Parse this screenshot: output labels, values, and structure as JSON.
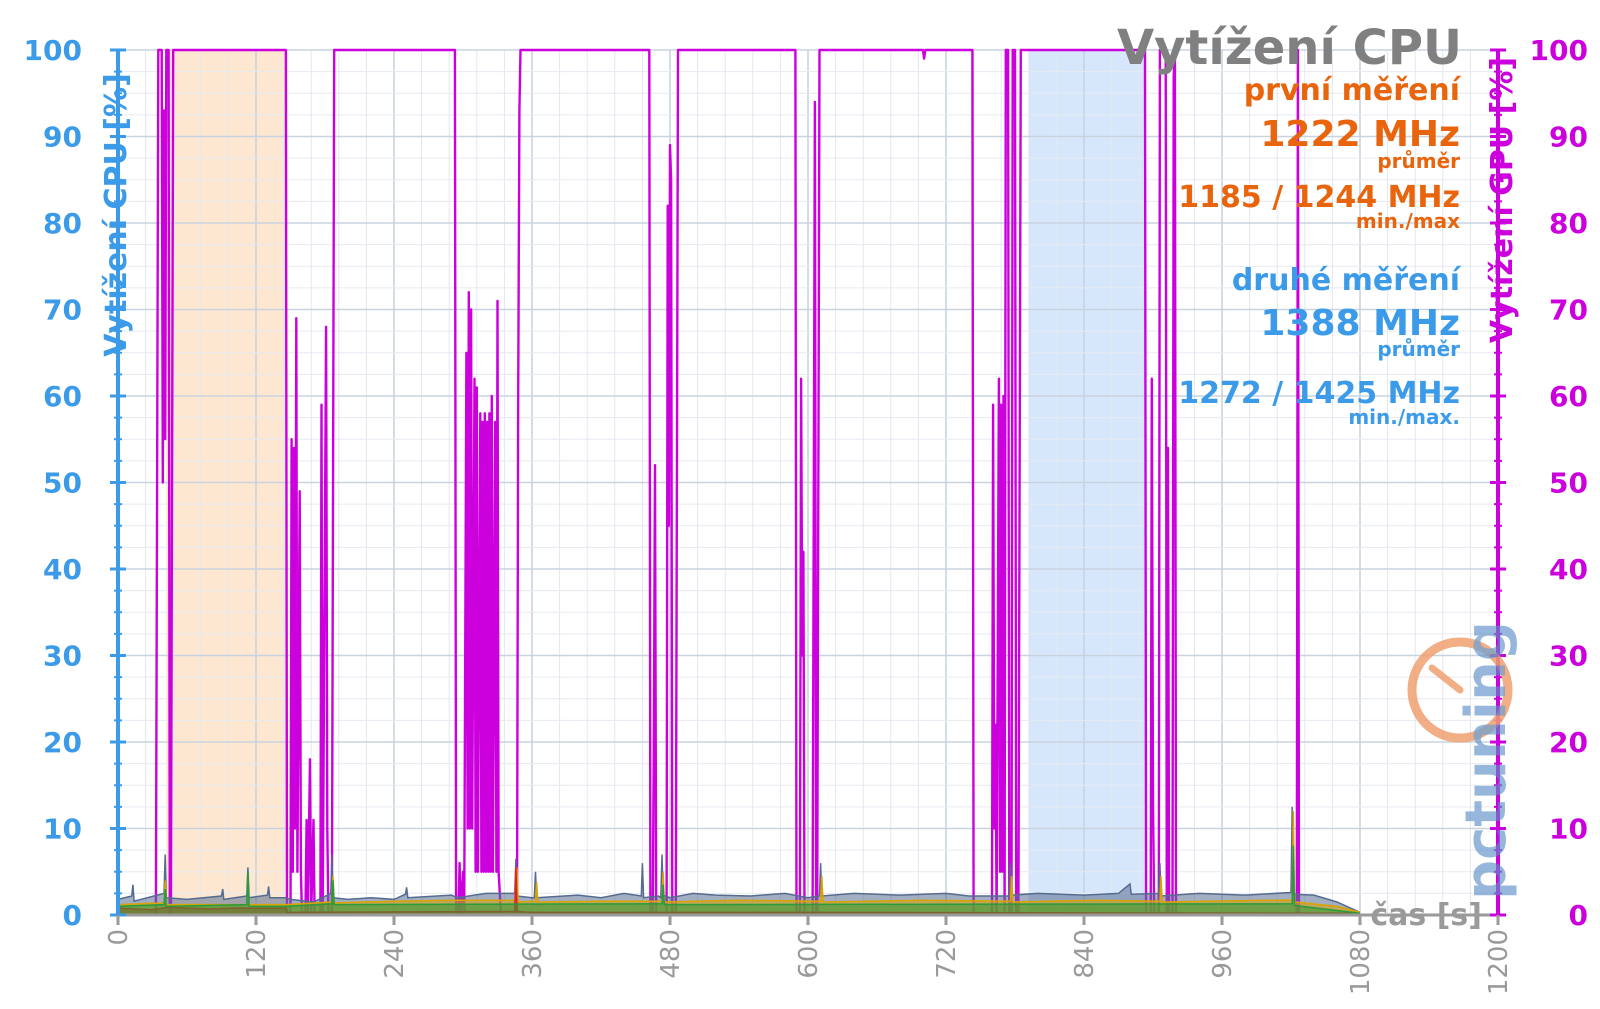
{
  "chart_data": {
    "type": "line",
    "title": "Vytížení CPU",
    "xlabel": "čas [s]",
    "ylabel_left": "Vytížení CPU [%]",
    "ylabel_right": "Vytížení GPU [%]",
    "xlim": [
      0,
      1200
    ],
    "ylim": [
      0,
      100
    ],
    "x_ticks": [
      "0",
      "120",
      "240",
      "360",
      "480",
      "600",
      "720",
      "840",
      "960",
      "1080",
      "1200"
    ],
    "y_ticks": [
      "0",
      "10",
      "20",
      "30",
      "40",
      "50",
      "60",
      "70",
      "80",
      "90",
      "100"
    ],
    "grid": true,
    "highlight_regions": [
      {
        "name": "první měření",
        "x_start": 42,
        "x_end": 146,
        "color": "#fde3c8"
      },
      {
        "name": "druhé měření",
        "x_start": 792,
        "x_end": 893,
        "color": "#cfe3fb"
      }
    ],
    "annotations": [
      {
        "text": "první měření",
        "color": "#e8650e"
      },
      {
        "text": "1222 MHz",
        "color": "#e8650e"
      },
      {
        "text": "průměr",
        "color": "#e8650e"
      },
      {
        "text": "1185 / 1244 MHz",
        "color": "#e8650e"
      },
      {
        "text": "min./max",
        "color": "#e8650e"
      },
      {
        "text": "druhé měření",
        "color": "#3c9be8"
      },
      {
        "text": "1388 MHz",
        "color": "#3c9be8"
      },
      {
        "text": "průměr",
        "color": "#3c9be8"
      },
      {
        "text": "1272 / 1425 MHz",
        "color": "#3c9be8"
      },
      {
        "text": "min./max.",
        "color": "#3c9be8"
      }
    ],
    "watermark": "pctuning",
    "series": [
      {
        "axis": "right",
        "color": "#cc00dd",
        "points": [
          [
            0,
            0
          ],
          [
            33,
            0
          ],
          [
            35,
            100
          ],
          [
            38,
            100
          ],
          [
            39,
            50
          ],
          [
            40,
            93
          ],
          [
            41,
            55
          ],
          [
            42,
            100
          ],
          [
            44,
            100
          ],
          [
            45,
            0
          ],
          [
            46,
            0
          ],
          [
            48,
            100
          ],
          [
            146,
            100
          ],
          [
            147,
            0
          ],
          [
            150,
            0
          ],
          [
            151,
            55
          ],
          [
            152,
            5
          ],
          [
            153,
            54
          ],
          [
            154,
            10
          ],
          [
            155,
            69
          ],
          [
            156,
            5
          ],
          [
            158,
            49
          ],
          [
            159,
            5
          ],
          [
            160,
            0
          ],
          [
            163,
            0
          ],
          [
            164,
            11
          ],
          [
            165,
            0
          ],
          [
            167,
            18
          ],
          [
            168,
            0
          ],
          [
            170,
            11
          ],
          [
            171,
            0
          ],
          [
            176,
            0
          ],
          [
            177,
            59
          ],
          [
            178,
            0
          ],
          [
            181,
            68
          ],
          [
            182,
            10
          ],
          [
            183,
            0
          ],
          [
            186,
            0
          ],
          [
            188,
            100
          ],
          [
            293,
            100
          ],
          [
            294,
            0
          ],
          [
            296,
            0
          ],
          [
            297,
            6
          ],
          [
            298,
            0
          ],
          [
            300,
            5
          ],
          [
            301,
            0
          ],
          [
            303,
            65
          ],
          [
            304,
            10
          ],
          [
            305,
            72
          ],
          [
            306,
            10
          ],
          [
            307,
            70
          ],
          [
            308,
            10
          ],
          [
            310,
            62
          ],
          [
            311,
            5
          ],
          [
            312,
            61
          ],
          [
            313,
            5
          ],
          [
            315,
            58
          ],
          [
            316,
            5
          ],
          [
            317,
            57
          ],
          [
            318,
            5
          ],
          [
            319,
            58
          ],
          [
            320,
            5
          ],
          [
            321,
            57
          ],
          [
            322,
            5
          ],
          [
            323,
            58
          ],
          [
            324,
            5
          ],
          [
            325,
            60
          ],
          [
            326,
            5
          ],
          [
            328,
            57
          ],
          [
            329,
            5
          ],
          [
            330,
            71
          ],
          [
            331,
            5
          ],
          [
            333,
            0
          ],
          [
            347,
            0
          ],
          [
            348,
            60
          ],
          [
            349,
            93
          ],
          [
            350,
            100
          ],
          [
            351,
            100
          ],
          [
            352,
            100
          ],
          [
            462,
            100
          ],
          [
            463,
            0
          ],
          [
            465,
            0
          ],
          [
            466,
            22
          ],
          [
            467,
            52
          ],
          [
            468,
            0
          ],
          [
            477,
            0
          ],
          [
            478,
            82
          ],
          [
            479,
            45
          ],
          [
            480,
            89
          ],
          [
            481,
            85
          ],
          [
            482,
            0
          ],
          [
            485,
            0
          ],
          [
            487,
            100
          ],
          [
            589,
            100
          ],
          [
            590,
            0
          ],
          [
            593,
            0
          ],
          [
            594,
            62
          ],
          [
            595,
            30
          ],
          [
            596,
            42
          ],
          [
            597,
            0
          ],
          [
            604,
            0
          ],
          [
            606,
            94
          ],
          [
            607,
            0
          ],
          [
            608,
            0
          ],
          [
            610,
            100
          ],
          [
            700,
            100
          ],
          [
            701,
            99
          ],
          [
            702,
            100
          ],
          [
            743,
            100
          ],
          [
            744,
            0
          ],
          [
            760,
            0
          ],
          [
            761,
            59
          ],
          [
            762,
            10
          ],
          [
            763,
            22
          ],
          [
            764,
            0
          ],
          [
            766,
            62
          ],
          [
            767,
            5
          ],
          [
            768,
            59
          ],
          [
            769,
            5
          ],
          [
            770,
            60
          ],
          [
            771,
            0
          ],
          [
            772,
            100
          ],
          [
            774,
            100
          ],
          [
            775,
            0
          ],
          [
            777,
            0
          ],
          [
            778,
            100
          ],
          [
            780,
            100
          ],
          [
            781,
            0
          ],
          [
            783,
            0
          ],
          [
            785,
            100
          ],
          [
            893,
            100
          ],
          [
            894,
            0
          ],
          [
            898,
            0
          ],
          [
            899,
            62
          ],
          [
            900,
            13
          ],
          [
            901,
            0
          ],
          [
            905,
            0
          ],
          [
            906,
            100
          ],
          [
            911,
            100
          ],
          [
            912,
            0
          ],
          [
            913,
            54
          ],
          [
            914,
            0
          ],
          [
            917,
            0
          ],
          [
            918,
            97
          ],
          [
            919,
            100
          ],
          [
            920,
            0
          ],
          [
            1025,
            0
          ],
          [
            1026,
            100
          ],
          [
            1027,
            0
          ],
          [
            1080,
            0
          ],
          [
            1200,
            0
          ]
        ]
      },
      {
        "axis": "left",
        "color": "#556b8f",
        "points": [
          [
            0,
            1.8
          ],
          [
            12,
            2.2
          ],
          [
            13,
            3.5
          ],
          [
            14,
            1.6
          ],
          [
            40,
            2.5
          ],
          [
            41,
            7
          ],
          [
            42,
            2
          ],
          [
            60,
            1.8
          ],
          [
            90,
            2.2
          ],
          [
            91,
            3
          ],
          [
            92,
            1.8
          ],
          [
            112,
            2.2
          ],
          [
            113,
            5.5
          ],
          [
            114,
            2
          ],
          [
            130,
            2.3
          ],
          [
            131,
            3.3
          ],
          [
            132,
            2
          ],
          [
            146,
            2
          ],
          [
            150,
            1.8
          ],
          [
            170,
            1.5
          ],
          [
            185,
            2.5
          ],
          [
            186,
            7
          ],
          [
            187,
            2
          ],
          [
            200,
            1.8
          ],
          [
            220,
            2
          ],
          [
            240,
            1.8
          ],
          [
            250,
            2.4
          ],
          [
            251,
            3.2
          ],
          [
            252,
            2
          ],
          [
            290,
            2.3
          ],
          [
            295,
            2
          ],
          [
            320,
            2.5
          ],
          [
            345,
            2.5
          ],
          [
            346,
            6.5
          ],
          [
            347,
            2.2
          ],
          [
            360,
            2
          ],
          [
            362,
            2
          ],
          [
            363,
            5
          ],
          [
            364,
            2
          ],
          [
            400,
            2.3
          ],
          [
            420,
            2
          ],
          [
            440,
            2.5
          ],
          [
            455,
            2.2
          ],
          [
            456,
            6
          ],
          [
            457,
            2
          ],
          [
            470,
            2.2
          ],
          [
            472,
            2
          ],
          [
            473,
            7
          ],
          [
            474,
            2.3
          ],
          [
            480,
            2
          ],
          [
            500,
            2.5
          ],
          [
            520,
            2.3
          ],
          [
            550,
            2.2
          ],
          [
            580,
            2.5
          ],
          [
            600,
            2
          ],
          [
            610,
            2.2
          ],
          [
            611,
            6
          ],
          [
            612,
            2.2
          ],
          [
            640,
            2.5
          ],
          [
            680,
            2.3
          ],
          [
            720,
            2.5
          ],
          [
            740,
            2.2
          ],
          [
            775,
            2.2
          ],
          [
            776,
            6
          ],
          [
            777,
            2.3
          ],
          [
            800,
            2.5
          ],
          [
            840,
            2.3
          ],
          [
            870,
            2.5
          ],
          [
            880,
            3.6
          ],
          [
            881,
            2.4
          ],
          [
            905,
            2.5
          ],
          [
            906,
            6
          ],
          [
            907,
            2.2
          ],
          [
            940,
            2.5
          ],
          [
            980,
            2.3
          ],
          [
            1020,
            2.6
          ],
          [
            1021,
            12.5
          ],
          [
            1022,
            2.4
          ],
          [
            1040,
            2.3
          ],
          [
            1060,
            1.5
          ],
          [
            1075,
            0.6
          ],
          [
            1080,
            0.3
          ]
        ]
      },
      {
        "axis": "left",
        "color": "#d9a300",
        "points": [
          [
            0,
            1.2
          ],
          [
            40,
            1.4
          ],
          [
            41,
            4
          ],
          [
            42,
            1.2
          ],
          [
            146,
            1.2
          ],
          [
            186,
            1.5
          ],
          [
            187,
            4.5
          ],
          [
            188,
            1.4
          ],
          [
            240,
            1.6
          ],
          [
            290,
            1.7
          ],
          [
            346,
            1.7
          ],
          [
            347,
            5.5
          ],
          [
            348,
            1.5
          ],
          [
            363,
            1.6
          ],
          [
            364,
            3.8
          ],
          [
            365,
            1.5
          ],
          [
            420,
            1.6
          ],
          [
            473,
            1.6
          ],
          [
            474,
            5
          ],
          [
            475,
            1.5
          ],
          [
            540,
            1.7
          ],
          [
            611,
            1.6
          ],
          [
            612,
            4.5
          ],
          [
            613,
            1.5
          ],
          [
            700,
            1.7
          ],
          [
            776,
            1.6
          ],
          [
            777,
            4.5
          ],
          [
            778,
            1.5
          ],
          [
            850,
            1.7
          ],
          [
            906,
            1.6
          ],
          [
            907,
            4.5
          ],
          [
            908,
            1.5
          ],
          [
            1000,
            1.7
          ],
          [
            1021,
            1.7
          ],
          [
            1022,
            12
          ],
          [
            1023,
            1.5
          ],
          [
            1060,
            1
          ],
          [
            1080,
            0.3
          ]
        ]
      },
      {
        "axis": "left",
        "color": "#e02020",
        "points": [
          [
            0,
            0.8
          ],
          [
            30,
            0.6
          ],
          [
            44,
            0.9
          ],
          [
            60,
            0.8
          ],
          [
            80,
            0.7
          ],
          [
            100,
            0.8
          ],
          [
            120,
            0.8
          ],
          [
            146,
            0.8
          ],
          [
            147,
            0.3
          ],
          [
            345,
            0.4
          ],
          [
            346,
            5.5
          ],
          [
            347,
            0.4
          ],
          [
            360,
            0.3
          ],
          [
            600,
            0.3
          ],
          [
            1080,
            0.2
          ]
        ]
      },
      {
        "axis": "left",
        "color": "#2a9a3a",
        "points": [
          [
            0,
            1
          ],
          [
            40,
            1.2
          ],
          [
            41,
            3
          ],
          [
            42,
            1
          ],
          [
            112,
            1.2
          ],
          [
            113,
            5
          ],
          [
            114,
            1
          ],
          [
            146,
            1
          ],
          [
            186,
            1.3
          ],
          [
            187,
            4
          ],
          [
            188,
            1.2
          ],
          [
            473,
            1.3
          ],
          [
            474,
            3.5
          ],
          [
            475,
            1.2
          ],
          [
            1021,
            1.3
          ],
          [
            1022,
            8
          ],
          [
            1023,
            1.1
          ],
          [
            1080,
            0.2
          ]
        ]
      }
    ]
  }
}
